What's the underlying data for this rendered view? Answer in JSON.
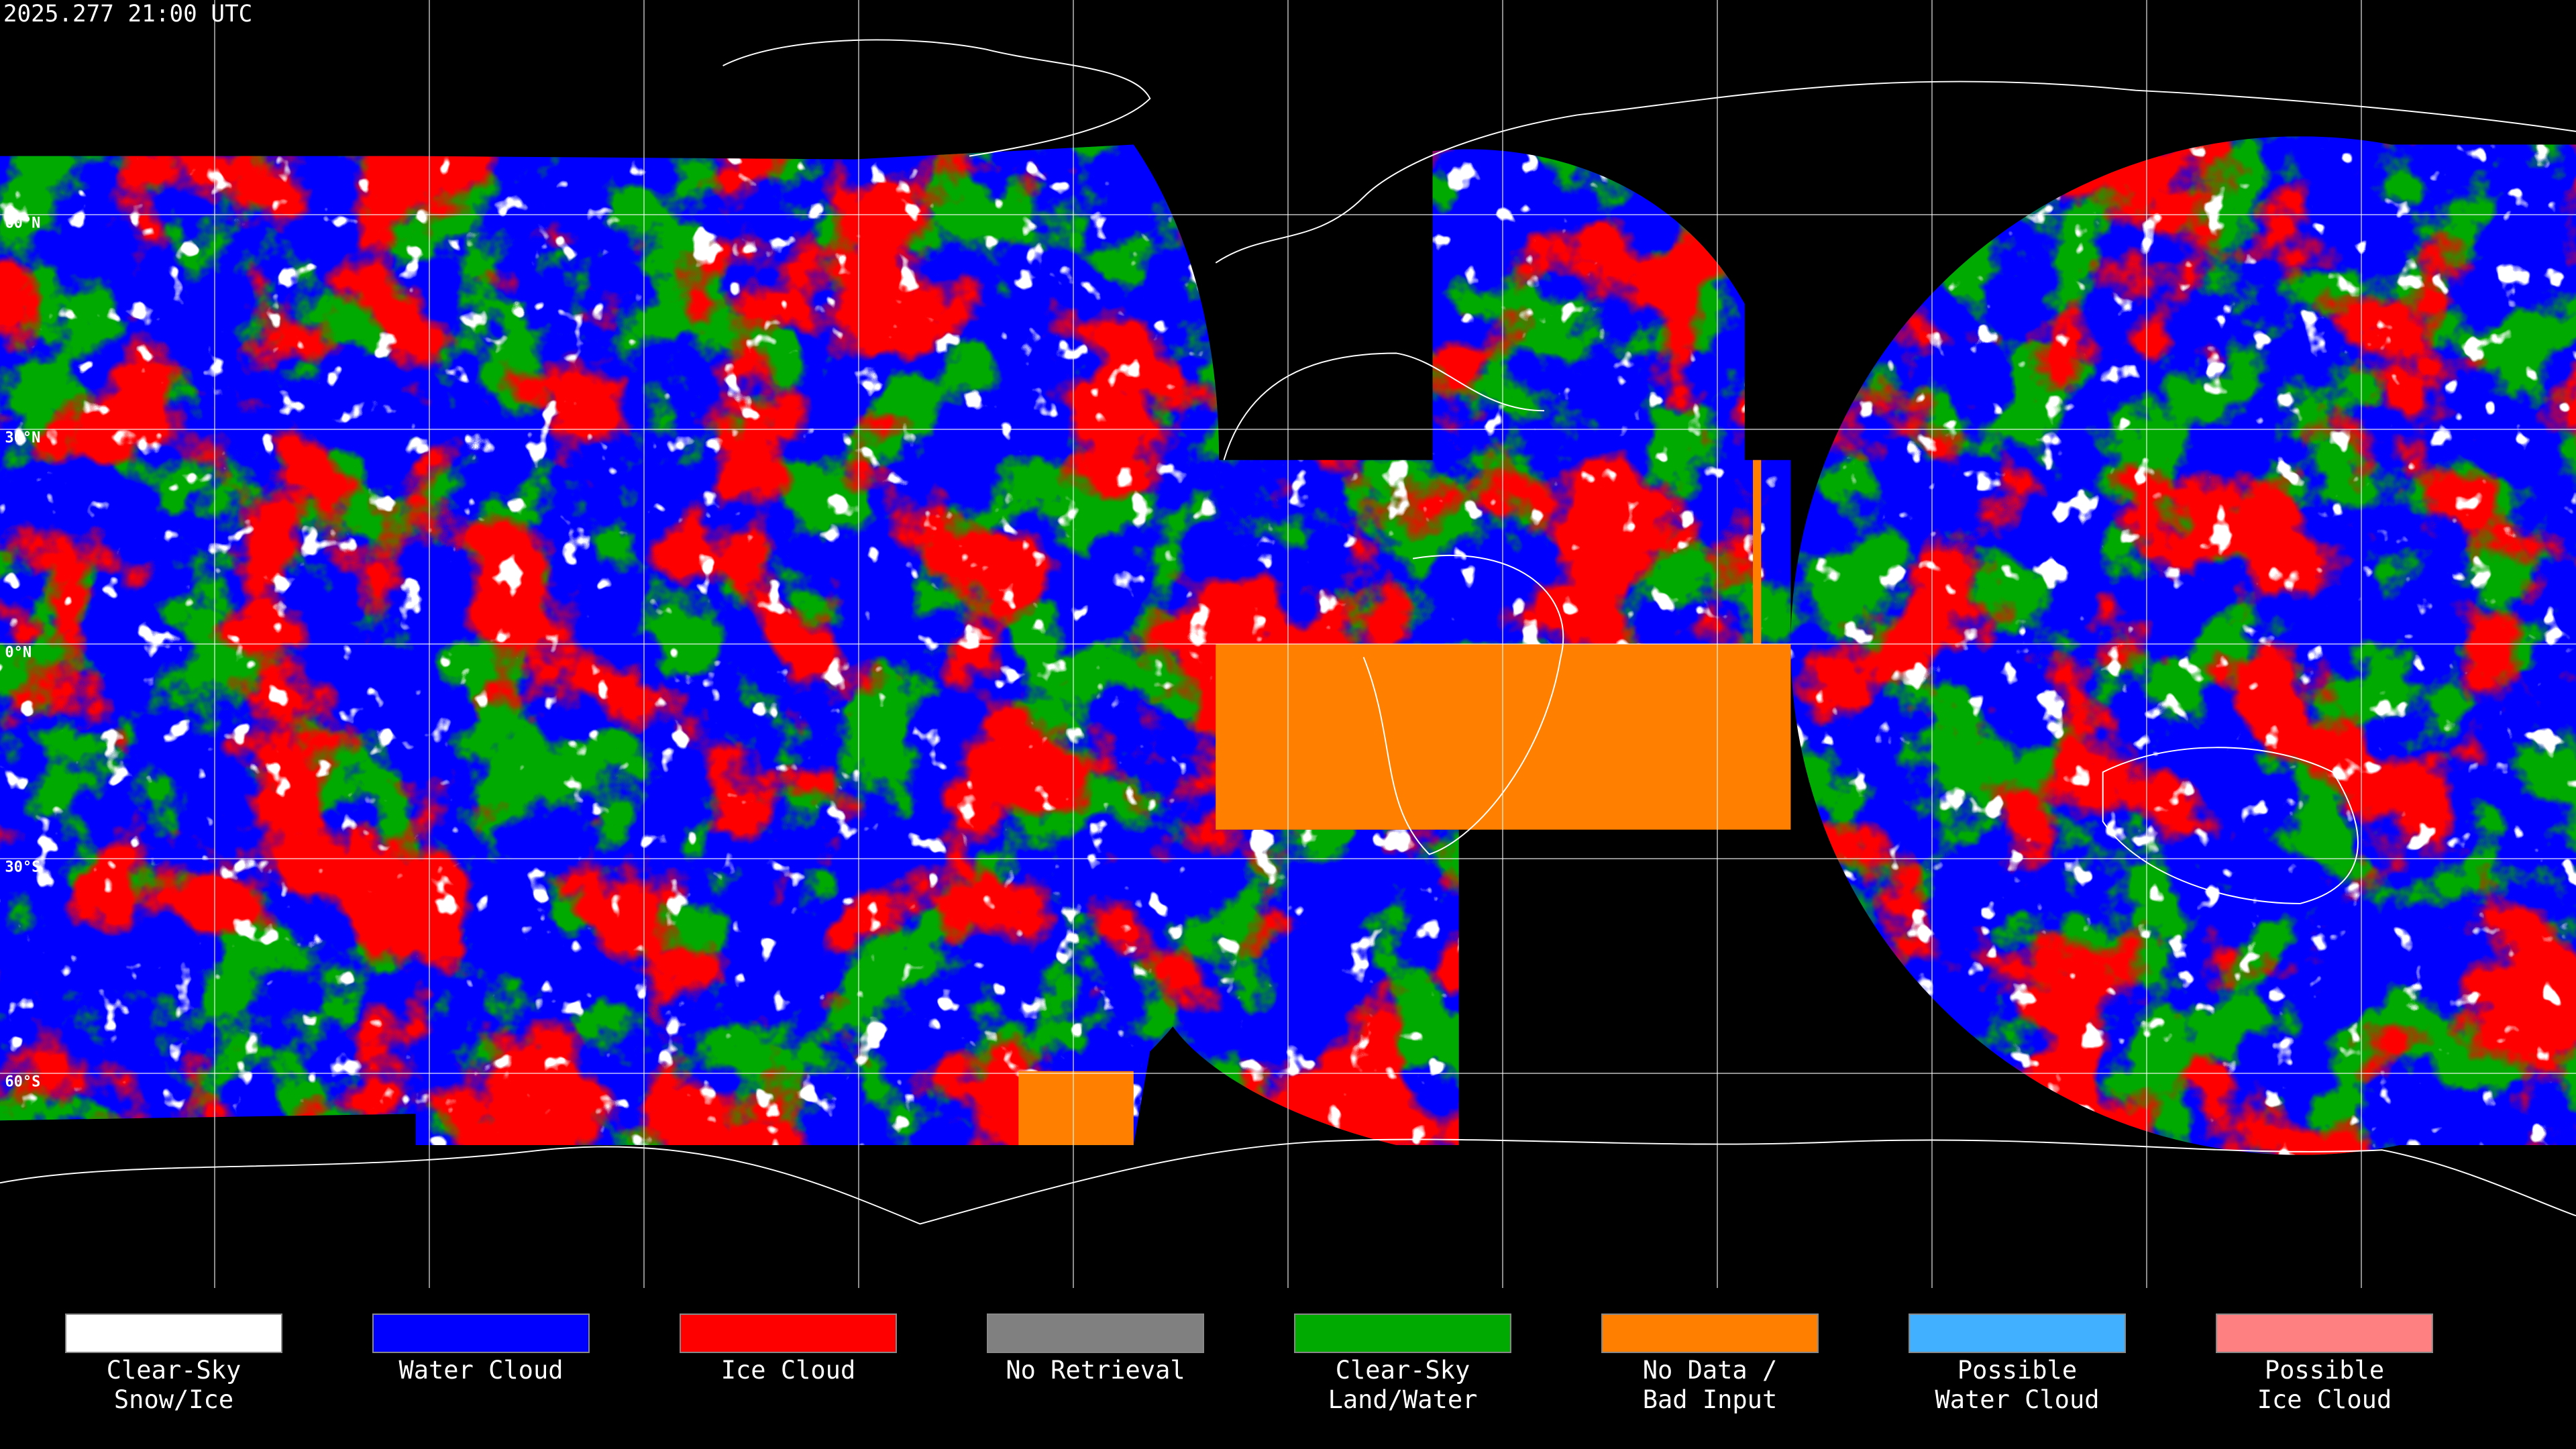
{
  "header": {
    "timestamp": "2025.277 21:00 UTC"
  },
  "map": {
    "latitude_labels": [
      "60°N",
      "30°N",
      "0°N",
      "30°S",
      "60°S"
    ]
  },
  "legend": {
    "items": [
      {
        "lines": [
          "Clear-Sky",
          "Snow/Ice"
        ],
        "color": "#ffffff"
      },
      {
        "lines": [
          "Water Cloud"
        ],
        "color": "#0000ff"
      },
      {
        "lines": [
          "Ice Cloud"
        ],
        "color": "#ff0000"
      },
      {
        "lines": [
          "No Retrieval"
        ],
        "color": "#808080"
      },
      {
        "lines": [
          "Clear-Sky",
          "Land/Water"
        ],
        "color": "#00aa00"
      },
      {
        "lines": [
          "No Data /",
          "Bad Input"
        ],
        "color": "#ff8000"
      },
      {
        "lines": [
          "Possible",
          "Water Cloud"
        ],
        "color": "#40b0ff"
      },
      {
        "lines": [
          "Possible",
          "Ice Cloud"
        ],
        "color": "#ff8080"
      }
    ]
  }
}
